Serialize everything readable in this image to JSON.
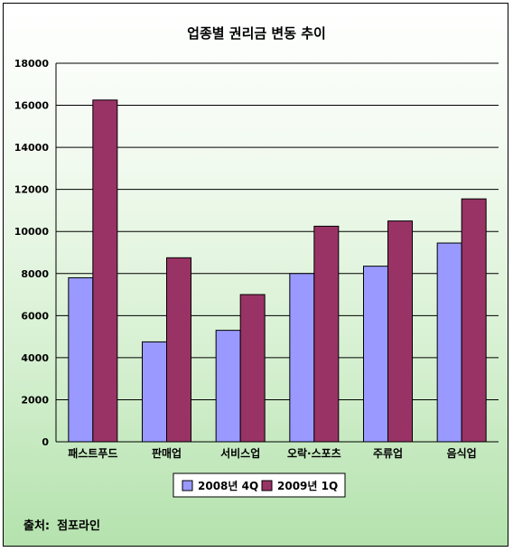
{
  "source": {
    "label": "출처:",
    "value": "점포라인"
  },
  "colors": {
    "series1": "#9999ff",
    "series2": "#993366",
    "grid": "#000000",
    "legend_bg": "#ffffff"
  },
  "chart_data": {
    "type": "bar",
    "title": "업종별 권리금 변동 추이",
    "xlabel": "",
    "ylabel": "",
    "categories": [
      "패스트푸드",
      "판매업",
      "서비스업",
      "오락·스포츠",
      "주류업",
      "음식업"
    ],
    "series": [
      {
        "name": "2008년 4Q",
        "values": [
          7800,
          4750,
          5300,
          8000,
          8350,
          9450
        ]
      },
      {
        "name": "2009년 1Q",
        "values": [
          16250,
          8750,
          7000,
          10250,
          10500,
          11550
        ]
      }
    ],
    "ylim": [
      0,
      18000
    ],
    "yticks": [
      0,
      2000,
      4000,
      6000,
      8000,
      10000,
      12000,
      14000,
      16000,
      18000
    ],
    "grid": true,
    "legend_position": "bottom"
  }
}
